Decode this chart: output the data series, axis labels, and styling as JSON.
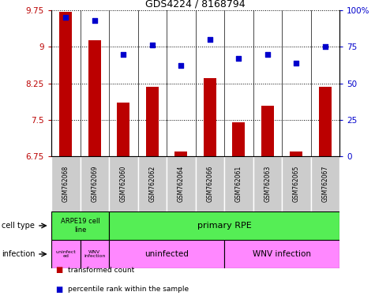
{
  "title": "GDS4224 / 8168794",
  "samples": [
    "GSM762068",
    "GSM762069",
    "GSM762060",
    "GSM762062",
    "GSM762064",
    "GSM762066",
    "GSM762061",
    "GSM762063",
    "GSM762065",
    "GSM762067"
  ],
  "transformed_count": [
    9.72,
    9.13,
    7.85,
    8.18,
    6.85,
    8.35,
    7.45,
    7.78,
    6.85,
    8.18
  ],
  "percentile_rank": [
    95,
    93,
    70,
    76,
    62,
    80,
    67,
    70,
    64,
    75
  ],
  "ylim": [
    6.75,
    9.75
  ],
  "yticks": [
    6.75,
    7.5,
    8.25,
    9.0,
    9.75
  ],
  "ytick_labels": [
    "6.75",
    "7.5",
    "8.25",
    "9",
    "9.75"
  ],
  "right_yticks": [
    0,
    25,
    50,
    75,
    100
  ],
  "right_ytick_labels": [
    "0",
    "25",
    "50",
    "75",
    "100%"
  ],
  "bar_color": "#bb0000",
  "dot_color": "#0000cc",
  "green_color": "#55ee55",
  "pink_color": "#ff88ff",
  "gray_color": "#cccccc",
  "legend_labels": [
    "transformed count",
    "percentile rank within the sample"
  ]
}
